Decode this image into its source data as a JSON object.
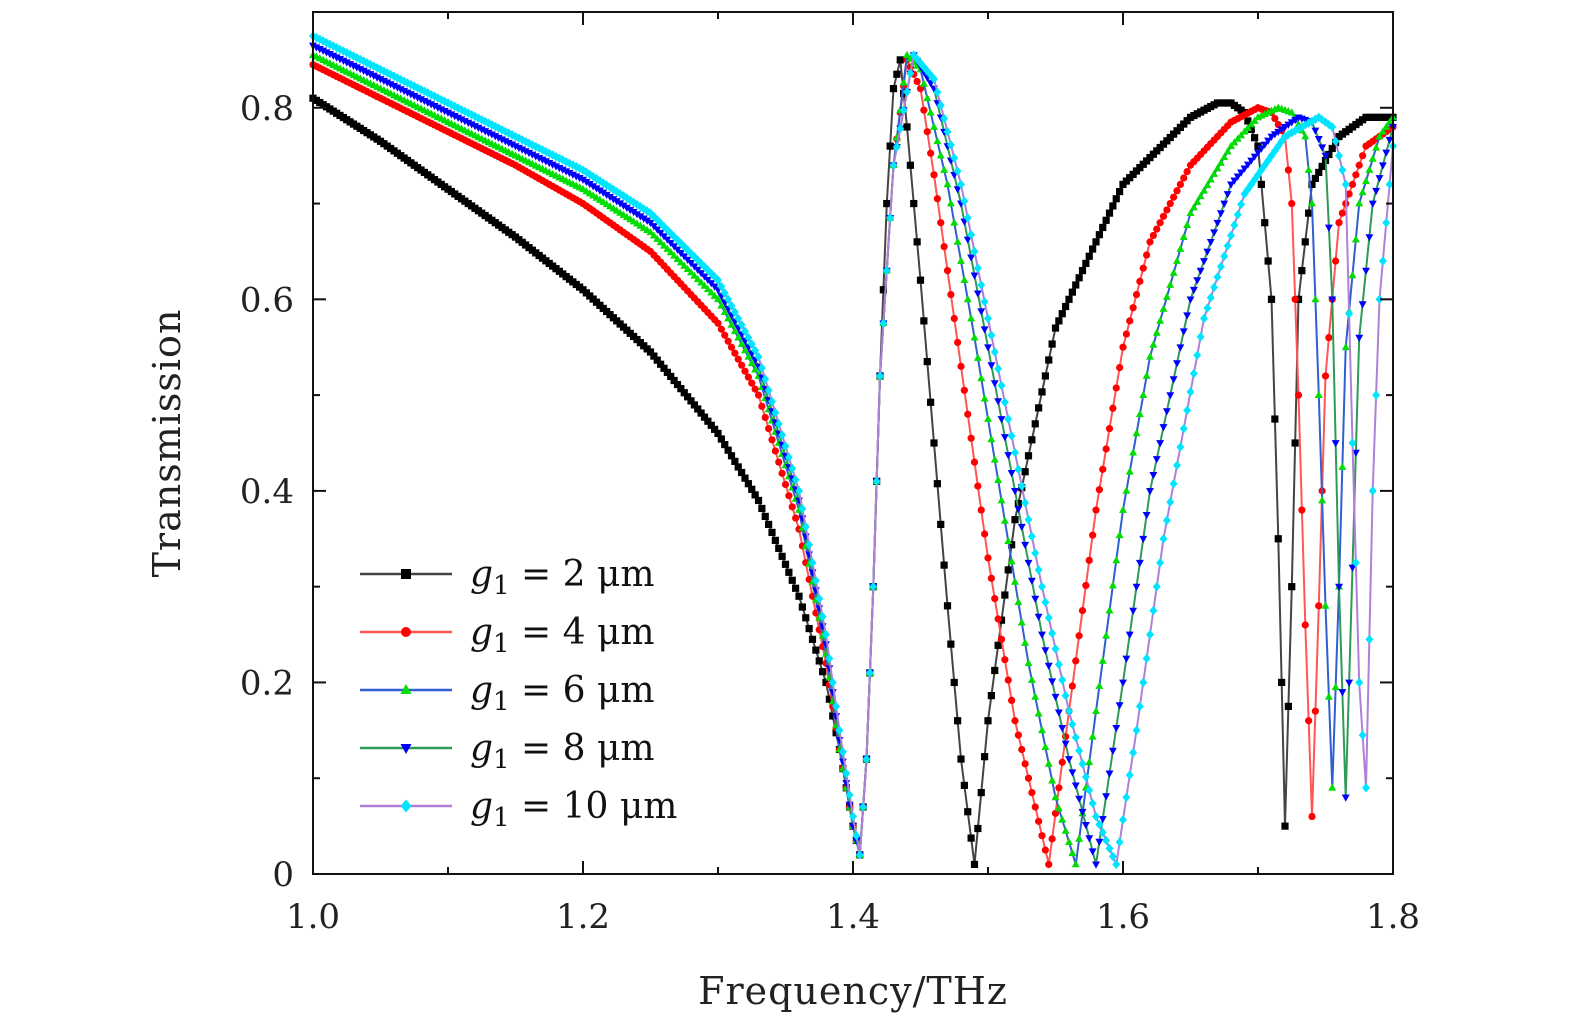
{
  "chart_data": {
    "type": "line",
    "title": "",
    "xlabel": "Frequency/THz",
    "ylabel": "Transmission",
    "xlim": [
      1.0,
      1.8
    ],
    "ylim": [
      0.0,
      0.9
    ],
    "xticks": [
      1.0,
      1.2,
      1.4,
      1.6,
      1.8
    ],
    "xtick_labels": [
      "1.0",
      "1.2",
      "1.4",
      "1.6",
      "1.8"
    ],
    "yticks": [
      0,
      0.2,
      0.4,
      0.6,
      0.8
    ],
    "ytick_labels": [
      "0",
      "0.2",
      "0.4",
      "0.6",
      "0.8"
    ],
    "grid": false,
    "legend_position": "bottom-left",
    "series": [
      {
        "name": "g1 = 2 μm",
        "legend_var": "g",
        "legend_sub": "1",
        "legend_rest": " = 2 μm",
        "line_color": "#444444",
        "marker_color": "#000000",
        "marker": "square",
        "points": [
          [
            1.0,
            0.81
          ],
          [
            1.05,
            0.765
          ],
          [
            1.1,
            0.715
          ],
          [
            1.15,
            0.665
          ],
          [
            1.2,
            0.61
          ],
          [
            1.25,
            0.545
          ],
          [
            1.3,
            0.46
          ],
          [
            1.33,
            0.39
          ],
          [
            1.36,
            0.29
          ],
          [
            1.38,
            0.2
          ],
          [
            1.39,
            0.13
          ],
          [
            1.4,
            0.05
          ],
          [
            1.405,
            0.02
          ],
          [
            1.41,
            0.12
          ],
          [
            1.415,
            0.3
          ],
          [
            1.42,
            0.52
          ],
          [
            1.425,
            0.7
          ],
          [
            1.43,
            0.82
          ],
          [
            1.435,
            0.85
          ],
          [
            1.44,
            0.78
          ],
          [
            1.45,
            0.62
          ],
          [
            1.46,
            0.45
          ],
          [
            1.47,
            0.28
          ],
          [
            1.48,
            0.12
          ],
          [
            1.49,
            0.01
          ],
          [
            1.5,
            0.16
          ],
          [
            1.52,
            0.37
          ],
          [
            1.55,
            0.57
          ],
          [
            1.6,
            0.72
          ],
          [
            1.65,
            0.79
          ],
          [
            1.67,
            0.805
          ],
          [
            1.68,
            0.805
          ],
          [
            1.69,
            0.795
          ],
          [
            1.7,
            0.76
          ],
          [
            1.71,
            0.6
          ],
          [
            1.715,
            0.35
          ],
          [
            1.72,
            0.05
          ],
          [
            1.725,
            0.3
          ],
          [
            1.73,
            0.6
          ],
          [
            1.74,
            0.72
          ],
          [
            1.76,
            0.77
          ],
          [
            1.78,
            0.79
          ],
          [
            1.8,
            0.79
          ]
        ]
      },
      {
        "name": "g1 = 4 μm",
        "legend_var": "g",
        "legend_sub": "1",
        "legend_rest": " = 4 μm",
        "line_color": "#ff5555",
        "marker_color": "#ff0000",
        "marker": "circle",
        "points": [
          [
            1.0,
            0.845
          ],
          [
            1.05,
            0.81
          ],
          [
            1.1,
            0.775
          ],
          [
            1.15,
            0.74
          ],
          [
            1.2,
            0.7
          ],
          [
            1.25,
            0.65
          ],
          [
            1.3,
            0.575
          ],
          [
            1.33,
            0.5
          ],
          [
            1.36,
            0.36
          ],
          [
            1.38,
            0.22
          ],
          [
            1.39,
            0.13
          ],
          [
            1.4,
            0.05
          ],
          [
            1.405,
            0.02
          ],
          [
            1.41,
            0.12
          ],
          [
            1.415,
            0.3
          ],
          [
            1.42,
            0.52
          ],
          [
            1.43,
            0.74
          ],
          [
            1.44,
            0.85
          ],
          [
            1.45,
            0.82
          ],
          [
            1.46,
            0.73
          ],
          [
            1.48,
            0.53
          ],
          [
            1.5,
            0.33
          ],
          [
            1.52,
            0.16
          ],
          [
            1.545,
            0.01
          ],
          [
            1.56,
            0.17
          ],
          [
            1.58,
            0.38
          ],
          [
            1.6,
            0.55
          ],
          [
            1.62,
            0.66
          ],
          [
            1.65,
            0.74
          ],
          [
            1.68,
            0.785
          ],
          [
            1.7,
            0.8
          ],
          [
            1.71,
            0.795
          ],
          [
            1.72,
            0.77
          ],
          [
            1.725,
            0.7
          ],
          [
            1.73,
            0.5
          ],
          [
            1.735,
            0.26
          ],
          [
            1.74,
            0.06
          ],
          [
            1.745,
            0.28
          ],
          [
            1.75,
            0.52
          ],
          [
            1.76,
            0.68
          ],
          [
            1.78,
            0.76
          ],
          [
            1.8,
            0.78
          ]
        ]
      },
      {
        "name": "g1 = 6 μm",
        "legend_var": "g",
        "legend_sub": "1",
        "legend_rest": " = 6 μm",
        "line_color": "#2f5fd0",
        "marker_color": "#00dd00",
        "marker": "triangle-up",
        "points": [
          [
            1.0,
            0.855
          ],
          [
            1.05,
            0.82
          ],
          [
            1.1,
            0.785
          ],
          [
            1.15,
            0.75
          ],
          [
            1.2,
            0.715
          ],
          [
            1.25,
            0.67
          ],
          [
            1.3,
            0.6
          ],
          [
            1.33,
            0.52
          ],
          [
            1.36,
            0.38
          ],
          [
            1.38,
            0.23
          ],
          [
            1.39,
            0.13
          ],
          [
            1.4,
            0.05
          ],
          [
            1.405,
            0.02
          ],
          [
            1.41,
            0.12
          ],
          [
            1.415,
            0.3
          ],
          [
            1.42,
            0.52
          ],
          [
            1.43,
            0.74
          ],
          [
            1.44,
            0.855
          ],
          [
            1.45,
            0.84
          ],
          [
            1.47,
            0.72
          ],
          [
            1.49,
            0.56
          ],
          [
            1.51,
            0.39
          ],
          [
            1.53,
            0.22
          ],
          [
            1.55,
            0.08
          ],
          [
            1.565,
            0.01
          ],
          [
            1.58,
            0.17
          ],
          [
            1.6,
            0.38
          ],
          [
            1.62,
            0.54
          ],
          [
            1.65,
            0.69
          ],
          [
            1.68,
            0.76
          ],
          [
            1.7,
            0.79
          ],
          [
            1.715,
            0.8
          ],
          [
            1.725,
            0.795
          ],
          [
            1.735,
            0.77
          ],
          [
            1.74,
            0.7
          ],
          [
            1.745,
            0.5
          ],
          [
            1.75,
            0.28
          ],
          [
            1.755,
            0.09
          ],
          [
            1.76,
            0.3
          ],
          [
            1.765,
            0.55
          ],
          [
            1.775,
            0.7
          ],
          [
            1.79,
            0.77
          ],
          [
            1.8,
            0.79
          ]
        ]
      },
      {
        "name": "g1 = 8 μm",
        "legend_var": "g",
        "legend_sub": "1",
        "legend_rest": " = 8 μm",
        "line_color": "#2e9a55",
        "marker_color": "#0000ff",
        "marker": "triangle-down",
        "points": [
          [
            1.0,
            0.865
          ],
          [
            1.05,
            0.83
          ],
          [
            1.1,
            0.795
          ],
          [
            1.15,
            0.76
          ],
          [
            1.2,
            0.725
          ],
          [
            1.25,
            0.68
          ],
          [
            1.3,
            0.61
          ],
          [
            1.33,
            0.53
          ],
          [
            1.36,
            0.39
          ],
          [
            1.38,
            0.24
          ],
          [
            1.39,
            0.14
          ],
          [
            1.4,
            0.05
          ],
          [
            1.405,
            0.02
          ],
          [
            1.41,
            0.12
          ],
          [
            1.415,
            0.3
          ],
          [
            1.42,
            0.52
          ],
          [
            1.43,
            0.74
          ],
          [
            1.445,
            0.855
          ],
          [
            1.46,
            0.82
          ],
          [
            1.48,
            0.7
          ],
          [
            1.5,
            0.55
          ],
          [
            1.52,
            0.4
          ],
          [
            1.54,
            0.25
          ],
          [
            1.56,
            0.12
          ],
          [
            1.58,
            0.01
          ],
          [
            1.6,
            0.2
          ],
          [
            1.62,
            0.4
          ],
          [
            1.65,
            0.6
          ],
          [
            1.68,
            0.72
          ],
          [
            1.71,
            0.77
          ],
          [
            1.73,
            0.79
          ],
          [
            1.74,
            0.785
          ],
          [
            1.75,
            0.75
          ],
          [
            1.755,
            0.6
          ],
          [
            1.76,
            0.3
          ],
          [
            1.765,
            0.08
          ],
          [
            1.77,
            0.32
          ],
          [
            1.775,
            0.56
          ],
          [
            1.785,
            0.7
          ],
          [
            1.8,
            0.78
          ]
        ]
      },
      {
        "name": "g1 = 10 μm",
        "legend_var": "g",
        "legend_sub": "1",
        "legend_rest": " = 10 μm",
        "line_color": "#b07fd8",
        "marker_color": "#00e5ff",
        "marker": "diamond",
        "points": [
          [
            1.0,
            0.875
          ],
          [
            1.05,
            0.84
          ],
          [
            1.1,
            0.805
          ],
          [
            1.15,
            0.77
          ],
          [
            1.2,
            0.735
          ],
          [
            1.25,
            0.69
          ],
          [
            1.3,
            0.62
          ],
          [
            1.33,
            0.54
          ],
          [
            1.36,
            0.4
          ],
          [
            1.38,
            0.25
          ],
          [
            1.39,
            0.15
          ],
          [
            1.4,
            0.06
          ],
          [
            1.405,
            0.02
          ],
          [
            1.41,
            0.12
          ],
          [
            1.415,
            0.3
          ],
          [
            1.42,
            0.52
          ],
          [
            1.43,
            0.74
          ],
          [
            1.445,
            0.855
          ],
          [
            1.46,
            0.83
          ],
          [
            1.48,
            0.72
          ],
          [
            1.5,
            0.58
          ],
          [
            1.52,
            0.44
          ],
          [
            1.54,
            0.3
          ],
          [
            1.56,
            0.17
          ],
          [
            1.58,
            0.06
          ],
          [
            1.595,
            0.01
          ],
          [
            1.61,
            0.15
          ],
          [
            1.63,
            0.35
          ],
          [
            1.66,
            0.58
          ],
          [
            1.69,
            0.71
          ],
          [
            1.72,
            0.77
          ],
          [
            1.745,
            0.79
          ],
          [
            1.755,
            0.78
          ],
          [
            1.765,
            0.72
          ],
          [
            1.77,
            0.45
          ],
          [
            1.775,
            0.2
          ],
          [
            1.78,
            0.09
          ],
          [
            1.785,
            0.4
          ],
          [
            1.79,
            0.6
          ],
          [
            1.8,
            0.76
          ]
        ]
      }
    ]
  }
}
